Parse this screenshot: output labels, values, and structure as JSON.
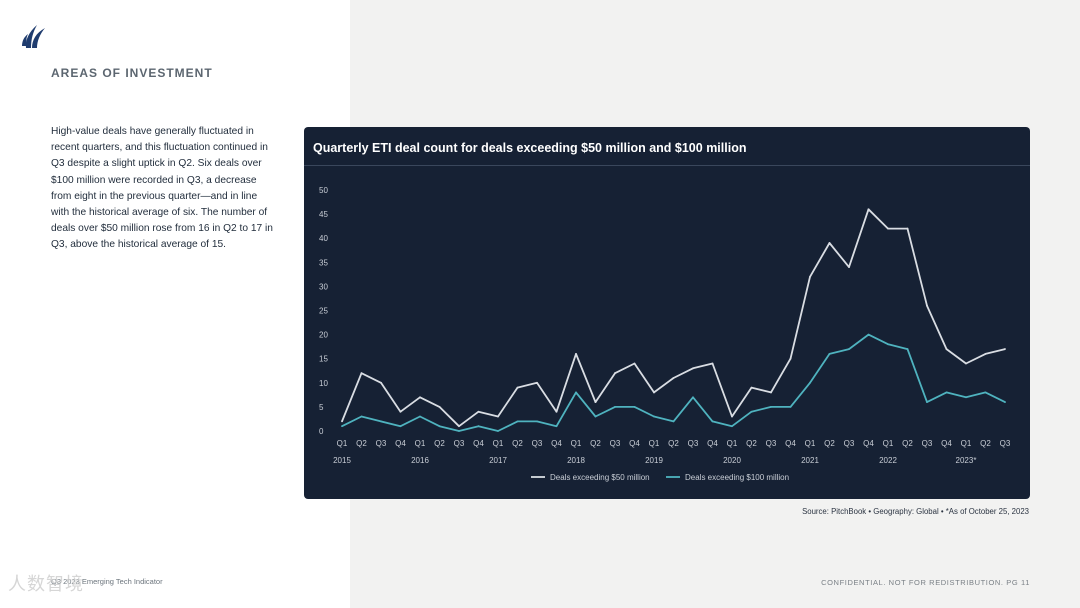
{
  "header": {
    "section_title": "AREAS OF INVESTMENT"
  },
  "body_text": "High-value deals have generally fluctuated in recent quarters, and this fluctuation continued in Q3 despite a slight uptick in Q2. Six deals over $100 million were recorded in Q3, a decrease from eight in the previous quarter—and in line with the historical average of six. The number of deals over $50 million rose from 16 in Q2 to 17 in Q3, above the historical average of 15.",
  "chart_data": {
    "type": "line",
    "title": "Quarterly ETI deal count for deals exceeding $50 million and $100 million",
    "xlabel": "",
    "ylabel": "",
    "ylim": [
      0,
      50
    ],
    "yticks": [
      "0",
      "5",
      "10",
      "15",
      "20",
      "25",
      "30",
      "35",
      "40",
      "45",
      "50"
    ],
    "quarter_labels": [
      "Q1",
      "Q2",
      "Q3",
      "Q4",
      "Q1",
      "Q2",
      "Q3",
      "Q4",
      "Q1",
      "Q2",
      "Q3",
      "Q4",
      "Q1",
      "Q2",
      "Q3",
      "Q4",
      "Q1",
      "Q2",
      "Q3",
      "Q4",
      "Q1",
      "Q2",
      "Q3",
      "Q4",
      "Q1",
      "Q2",
      "Q3",
      "Q4",
      "Q1",
      "Q2",
      "Q3",
      "Q4",
      "Q1",
      "Q2",
      "Q3"
    ],
    "year_labels": [
      {
        "label": "2015",
        "index": 0
      },
      {
        "label": "2016",
        "index": 4
      },
      {
        "label": "2017",
        "index": 8
      },
      {
        "label": "2018",
        "index": 12
      },
      {
        "label": "2019",
        "index": 16
      },
      {
        "label": "2020",
        "index": 20
      },
      {
        "label": "2021",
        "index": 24
      },
      {
        "label": "2022",
        "index": 28
      },
      {
        "label": "2023*",
        "index": 32
      }
    ],
    "series": [
      {
        "name": "Deals exceeding $50 million",
        "color": "#d9dde3",
        "values": [
          2,
          12,
          10,
          4,
          7,
          5,
          1,
          4,
          3,
          9,
          10,
          4,
          16,
          6,
          12,
          14,
          8,
          11,
          13,
          14,
          3,
          9,
          8,
          15,
          32,
          39,
          34,
          46,
          42,
          42,
          26,
          17,
          14,
          16,
          17
        ]
      },
      {
        "name": "Deals exceeding $100 million",
        "color": "#4fb3bf",
        "values": [
          1,
          3,
          2,
          1,
          3,
          1,
          0,
          1,
          0,
          2,
          2,
          1,
          8,
          3,
          5,
          5,
          3,
          2,
          7,
          2,
          1,
          4,
          5,
          5,
          10,
          16,
          17,
          20,
          18,
          17,
          6,
          8,
          7,
          8,
          6
        ]
      }
    ]
  },
  "source_text": "Source: PitchBook  •  Geography: Global  •  *As of October 25, 2023",
  "footer": {
    "left": "Q3 2023 Emerging Tech Indicator",
    "right": "CONFIDENTIAL. NOT FOR REDISTRIBUTION.  PG 11"
  },
  "watermark": "人数智境"
}
